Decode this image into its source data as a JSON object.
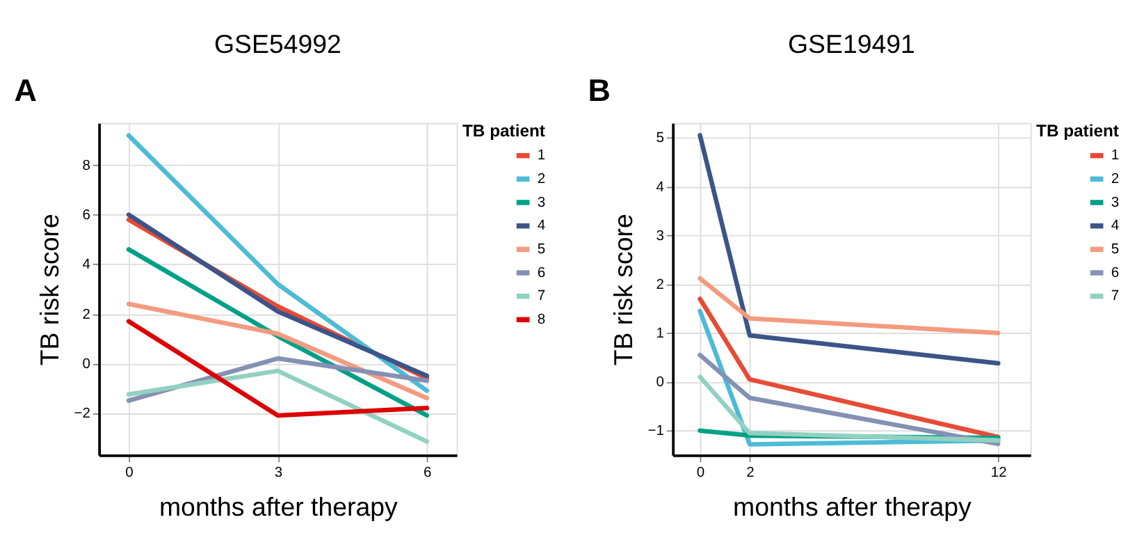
{
  "chart_data": [
    {
      "type": "line",
      "title": "GSE54992",
      "xlabel": "months after therapy",
      "ylabel": "TB risk score",
      "legend_title": "TB patient",
      "legend": "top right",
      "grid": true,
      "annotations": [
        "A"
      ],
      "x": [
        0,
        3,
        6
      ],
      "xlim": [
        -0.6,
        6.6
      ],
      "xticks": [
        0,
        3,
        6
      ],
      "ylim": [
        -3.7,
        9.7
      ],
      "yticks": [
        -2,
        0,
        2,
        4,
        6,
        8
      ],
      "series": [
        {
          "name": "1",
          "color": "#e64b35",
          "values": [
            5.8,
            2.3,
            -0.6
          ]
        },
        {
          "name": "2",
          "color": "#4dbbd5",
          "values": [
            9.2,
            3.2,
            -1.1
          ]
        },
        {
          "name": "3",
          "color": "#00a087",
          "values": [
            4.6,
            1.1,
            -2.1
          ]
        },
        {
          "name": "4",
          "color": "#3c5488",
          "values": [
            6.0,
            2.1,
            -0.5
          ]
        },
        {
          "name": "5",
          "color": "#f39b7f",
          "values": [
            2.4,
            1.2,
            -1.4
          ]
        },
        {
          "name": "6",
          "color": "#8491b4",
          "values": [
            -1.5,
            0.2,
            -0.7
          ]
        },
        {
          "name": "7",
          "color": "#91d1c2",
          "values": [
            -1.25,
            -0.3,
            -3.15
          ]
        },
        {
          "name": "8",
          "color": "#dc0000",
          "values": [
            1.7,
            -2.1,
            -1.8
          ]
        }
      ]
    },
    {
      "type": "line",
      "title": "GSE19491",
      "xlabel": "months after therapy",
      "ylabel": "TB risk score",
      "legend_title": "TB patient",
      "legend": "top right",
      "grid": true,
      "annotations": [
        "B"
      ],
      "x": [
        0,
        2,
        12
      ],
      "xlim": [
        -1.1,
        13.3
      ],
      "xticks": [
        0,
        2,
        12
      ],
      "ylim": [
        -1.5,
        5.3
      ],
      "yticks": [
        -1,
        0,
        1,
        2,
        3,
        4,
        5
      ],
      "series": [
        {
          "name": "1",
          "color": "#e64b35",
          "values": [
            1.7,
            0.05,
            -1.13
          ]
        },
        {
          "name": "2",
          "color": "#4dbbd5",
          "values": [
            1.45,
            -1.28,
            -1.2
          ]
        },
        {
          "name": "3",
          "color": "#00a087",
          "values": [
            -1.0,
            -1.1,
            -1.15
          ]
        },
        {
          "name": "4",
          "color": "#3c5488",
          "values": [
            5.05,
            0.95,
            0.38
          ]
        },
        {
          "name": "5",
          "color": "#f39b7f",
          "values": [
            2.12,
            1.3,
            1.0
          ]
        },
        {
          "name": "6",
          "color": "#8491b4",
          "values": [
            0.55,
            -0.33,
            -1.27
          ]
        },
        {
          "name": "7",
          "color": "#91d1c2",
          "values": [
            0.1,
            -1.05,
            -1.2
          ]
        }
      ]
    }
  ]
}
